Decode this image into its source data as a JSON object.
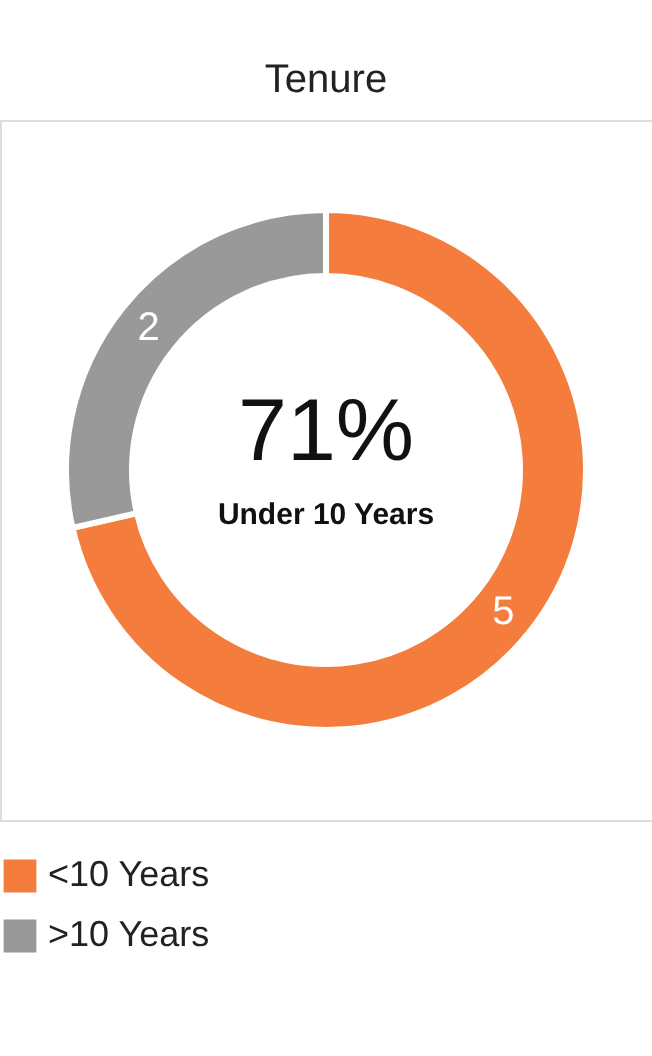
{
  "chart_data": {
    "type": "donut",
    "title": "Tenure",
    "categories": [
      "<10 Years",
      ">10 Years"
    ],
    "values": [
      5,
      2
    ],
    "colors": [
      "#f47c3c",
      "#999999"
    ],
    "data_labels": true,
    "legend": "bottom",
    "annotations": [
      "71%",
      "Under 10 Years"
    ]
  }
}
